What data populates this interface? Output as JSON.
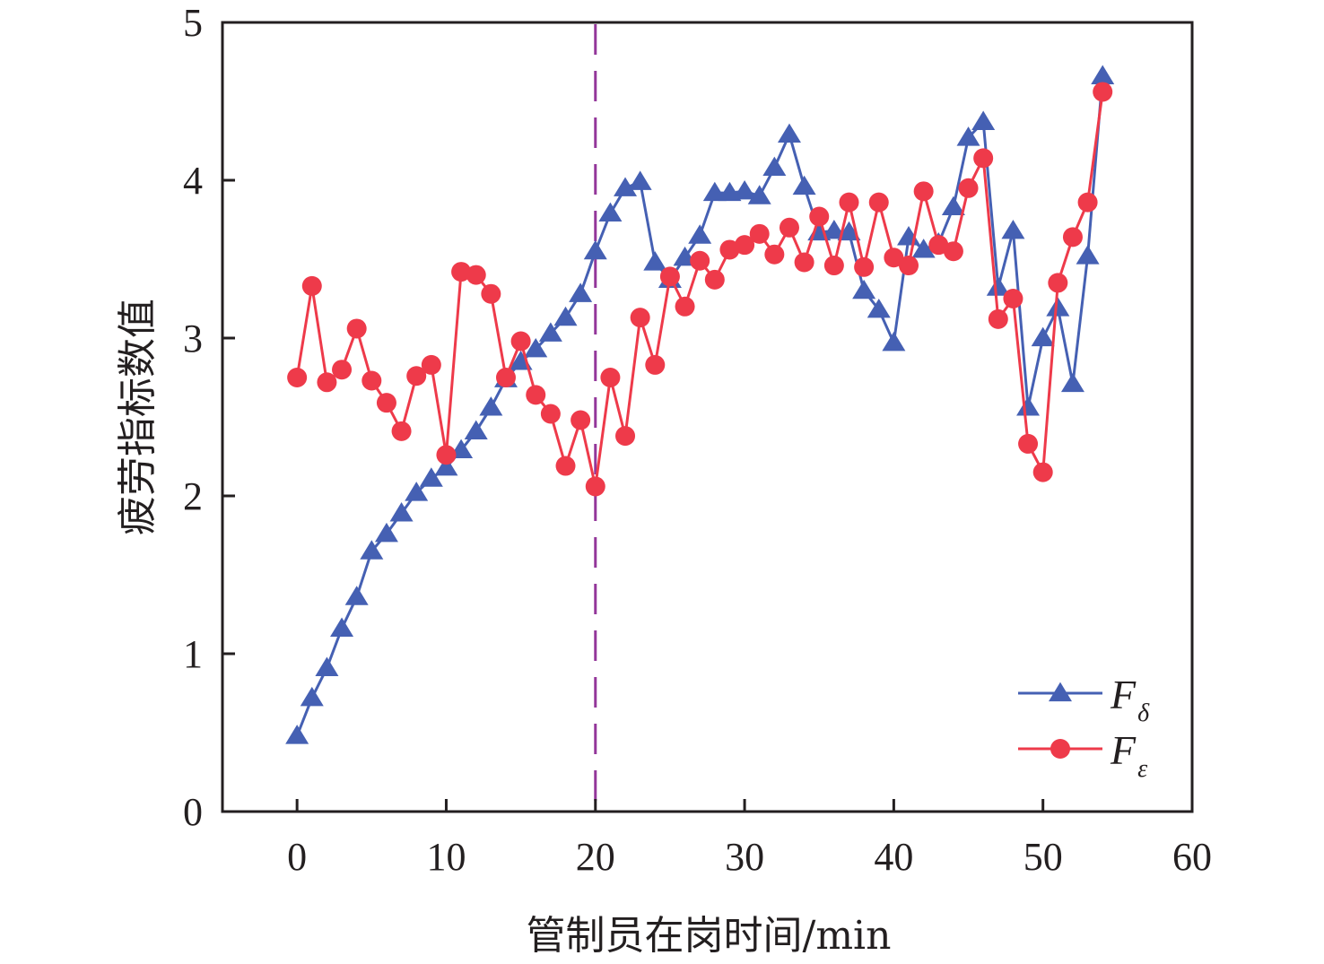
{
  "chart_data": {
    "type": "line",
    "title": "",
    "xlabel": "管制员在岗时间/min",
    "ylabel": "疲劳指标数值",
    "xlim": [
      -5,
      60
    ],
    "ylim": [
      0,
      5
    ],
    "xticks": [
      "0",
      "10",
      "20",
      "30",
      "40",
      "50",
      "60"
    ],
    "xtick_values": [
      0,
      10,
      20,
      30,
      40,
      50,
      60
    ],
    "yticks": [
      "0",
      "1",
      "2",
      "3",
      "4",
      "5"
    ],
    "ytick_values": [
      0,
      1,
      2,
      3,
      4,
      5
    ],
    "grid": false,
    "legend_position": "bottom-right",
    "reference_line": {
      "x": 20,
      "style": "dashed",
      "color": "#93379a"
    },
    "x": [
      0,
      1,
      2,
      3,
      4,
      5,
      6,
      7,
      8,
      9,
      10,
      11,
      12,
      13,
      14,
      15,
      16,
      17,
      18,
      19,
      20,
      21,
      22,
      23,
      24,
      25,
      26,
      27,
      28,
      29,
      30,
      31,
      32,
      33,
      34,
      35,
      36,
      37,
      38,
      39,
      40,
      41,
      42,
      43,
      44,
      45,
      46,
      47,
      48,
      49,
      50,
      51,
      52,
      53,
      54
    ],
    "series": [
      {
        "name": "F",
        "subscript": "δ",
        "marker": "triangle",
        "color": "#4560b3",
        "values": [
          0.48,
          0.72,
          0.91,
          1.16,
          1.36,
          1.65,
          1.76,
          1.89,
          2.02,
          2.11,
          2.18,
          2.29,
          2.41,
          2.56,
          2.74,
          2.85,
          2.93,
          3.03,
          3.13,
          3.28,
          3.55,
          3.79,
          3.95,
          3.99,
          3.48,
          3.37,
          3.51,
          3.65,
          3.92,
          3.92,
          3.93,
          3.9,
          4.08,
          4.29,
          3.96,
          3.67,
          3.68,
          3.67,
          3.3,
          3.18,
          2.97,
          3.64,
          3.56,
          3.6,
          3.83,
          4.27,
          4.37,
          3.32,
          3.68,
          2.56,
          3.0,
          3.19,
          2.71,
          3.52,
          4.66
        ]
      },
      {
        "name": "F",
        "subscript": "ε",
        "marker": "circle",
        "color": "#ee3a4a",
        "values": [
          2.75,
          3.33,
          2.72,
          2.8,
          3.06,
          2.73,
          2.59,
          2.41,
          2.76,
          2.83,
          2.26,
          3.42,
          3.4,
          3.28,
          2.75,
          2.98,
          2.64,
          2.52,
          2.19,
          2.48,
          2.06,
          2.75,
          2.38,
          3.13,
          2.83,
          3.39,
          3.2,
          3.49,
          3.37,
          3.56,
          3.59,
          3.66,
          3.53,
          3.7,
          3.48,
          3.77,
          3.46,
          3.86,
          3.45,
          3.86,
          3.51,
          3.46,
          3.93,
          3.59,
          3.55,
          3.95,
          4.14,
          3.12,
          3.25,
          2.33,
          2.15,
          3.35,
          3.64,
          3.86,
          4.56
        ]
      }
    ]
  }
}
